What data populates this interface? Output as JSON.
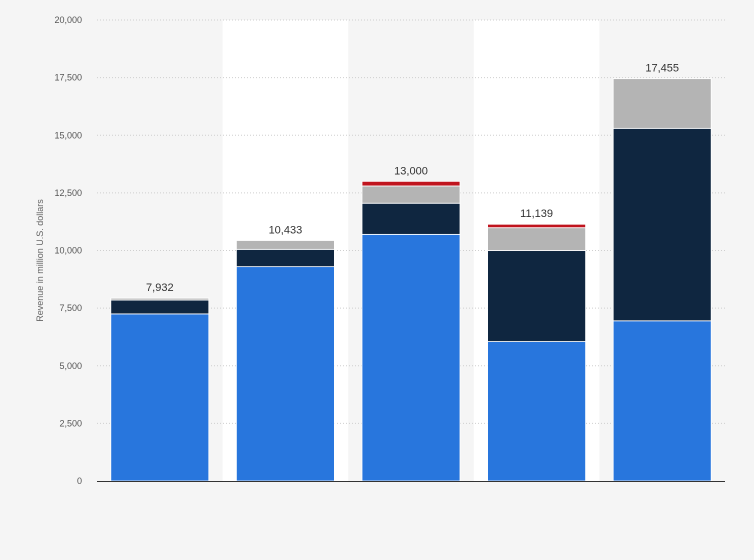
{
  "chart_data": {
    "type": "bar",
    "stacked": true,
    "ylabel": "Revenue in million U.S. dollars",
    "ylim": [
      0,
      20000
    ],
    "yticks": [
      0,
      2500,
      5000,
      7500,
      10000,
      12500,
      15000,
      17500,
      20000
    ],
    "ytick_labels": [
      "0",
      "2,500",
      "5,000",
      "7,500",
      "10,000",
      "12,500",
      "15,000",
      "17,500",
      "20,000"
    ],
    "categories": [
      "",
      "",
      "",
      "",
      ""
    ],
    "totals": [
      "7,932",
      "10,433",
      "13,000",
      "11,139",
      "17,455"
    ],
    "grid": true,
    "legend": "none",
    "series": [
      {
        "values": [
          7250,
          9300,
          10700,
          6050,
          6950
        ],
        "color": "#2876dd"
      },
      {
        "values": [
          600,
          750,
          1350,
          3950,
          8350
        ],
        "color": "#0f2640"
      },
      {
        "values": [
          82,
          383,
          750,
          990,
          2155
        ],
        "color": "#b4b4b4"
      },
      {
        "values": [
          0,
          0,
          200,
          149,
          0
        ],
        "color": "#c0141e"
      }
    ]
  }
}
